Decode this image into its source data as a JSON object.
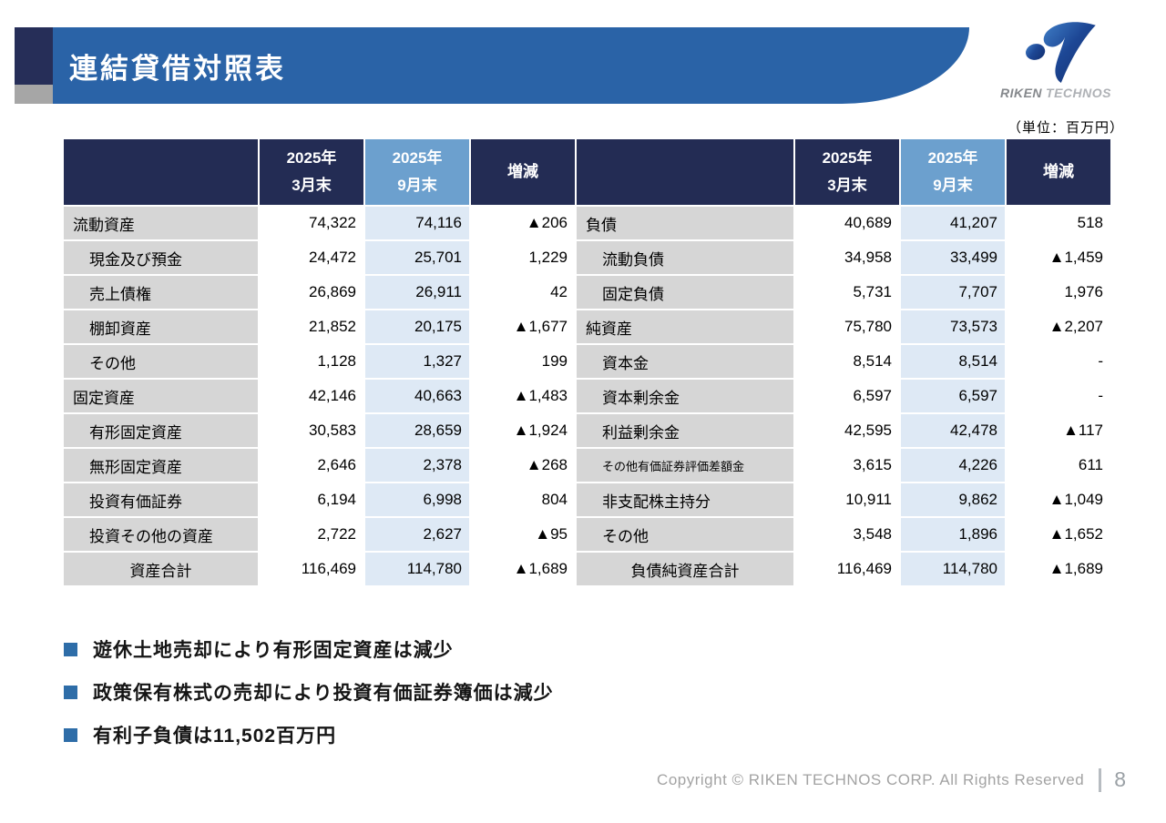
{
  "slide": {
    "title": "連結貸借対照表",
    "unit_label": "（単位：百万円）",
    "logo": {
      "brand_part1": "RIKEN",
      "brand_part2": "TECHNOS",
      "icon": "riken-technos-swoosh-icon"
    },
    "footer": {
      "copyright": "Copyright © RIKEN TECHNOS CORP. All Rights Reserved",
      "page_number": "8"
    }
  },
  "table": {
    "headers": {
      "mar": {
        "line1": "2025年",
        "line2": "3月末"
      },
      "sep": {
        "line1": "2025年",
        "line2": "9月末"
      },
      "diff": "増減"
    },
    "rows": [
      {
        "left": {
          "label": "流動資産",
          "indent": "top",
          "mar": "74,322",
          "sep": "74,116",
          "diff": "▲206"
        },
        "right": {
          "label": "負債",
          "indent": "top",
          "mar": "40,689",
          "sep": "41,207",
          "diff": "518"
        }
      },
      {
        "left": {
          "label": "現金及び預金",
          "indent": "sub",
          "mar": "24,472",
          "sep": "25,701",
          "diff": "1,229"
        },
        "right": {
          "label": "流動負債",
          "indent": "sub",
          "mar": "34,958",
          "sep": "33,499",
          "diff": "▲1,459"
        }
      },
      {
        "left": {
          "label": "売上債権",
          "indent": "sub",
          "mar": "26,869",
          "sep": "26,911",
          "diff": "42"
        },
        "right": {
          "label": "固定負債",
          "indent": "sub",
          "mar": "5,731",
          "sep": "7,707",
          "diff": "1,976"
        }
      },
      {
        "left": {
          "label": "棚卸資産",
          "indent": "sub",
          "mar": "21,852",
          "sep": "20,175",
          "diff": "▲1,677"
        },
        "right": {
          "label": "純資産",
          "indent": "top",
          "mar": "75,780",
          "sep": "73,573",
          "diff": "▲2,207"
        }
      },
      {
        "left": {
          "label": "その他",
          "indent": "sub",
          "mar": "1,128",
          "sep": "1,327",
          "diff": "199"
        },
        "right": {
          "label": "資本金",
          "indent": "sub",
          "mar": "8,514",
          "sep": "8,514",
          "diff": "-"
        }
      },
      {
        "left": {
          "label": "固定資産",
          "indent": "top",
          "mar": "42,146",
          "sep": "40,663",
          "diff": "▲1,483"
        },
        "right": {
          "label": "資本剰余金",
          "indent": "sub",
          "mar": "6,597",
          "sep": "6,597",
          "diff": "-"
        }
      },
      {
        "left": {
          "label": "有形固定資産",
          "indent": "sub",
          "mar": "30,583",
          "sep": "28,659",
          "diff": "▲1,924"
        },
        "right": {
          "label": "利益剰余金",
          "indent": "sub",
          "mar": "42,595",
          "sep": "42,478",
          "diff": "▲117"
        }
      },
      {
        "left": {
          "label": "無形固定資産",
          "indent": "sub",
          "mar": "2,646",
          "sep": "2,378",
          "diff": "▲268"
        },
        "right": {
          "label": "その他有価証券評価差額金",
          "indent": "sub",
          "small": true,
          "mar": "3,615",
          "sep": "4,226",
          "diff": "611"
        }
      },
      {
        "left": {
          "label": "投資有価証券",
          "indent": "sub",
          "mar": "6,194",
          "sep": "6,998",
          "diff": "804"
        },
        "right": {
          "label": "非支配株主持分",
          "indent": "sub",
          "mar": "10,911",
          "sep": "9,862",
          "diff": "▲1,049"
        }
      },
      {
        "left": {
          "label": "投資その他の資産",
          "indent": "sub",
          "mar": "2,722",
          "sep": "2,627",
          "diff": "▲95"
        },
        "right": {
          "label": "その他",
          "indent": "sub",
          "mar": "3,548",
          "sep": "1,896",
          "diff": "▲1,652"
        }
      },
      {
        "left": {
          "label": "資産合計",
          "indent": "total",
          "mar": "116,469",
          "sep": "114,780",
          "diff": "▲1,689"
        },
        "right": {
          "label": "負債純資産合計",
          "indent": "total",
          "mar": "116,469",
          "sep": "114,780",
          "diff": "▲1,689"
        }
      }
    ]
  },
  "notes": [
    "遊休土地売却により有形固定資産は減少",
    "政策保有株式の売却により投資有価証券簿価は減少",
    "有利子負債は11,502百万円"
  ],
  "colors": {
    "banner-blue": "#2A63A7",
    "accent-navy": "#262E58",
    "accent-gray": "#A6A6A6",
    "header-navy": "#232C54",
    "header-blue": "#6CA0CE",
    "cell-blue": "#DEE9F5",
    "label-gray": "#D6D6D6",
    "bullet-blue": "#2E6DA8",
    "footer-gray": "#A3A3A3"
  }
}
